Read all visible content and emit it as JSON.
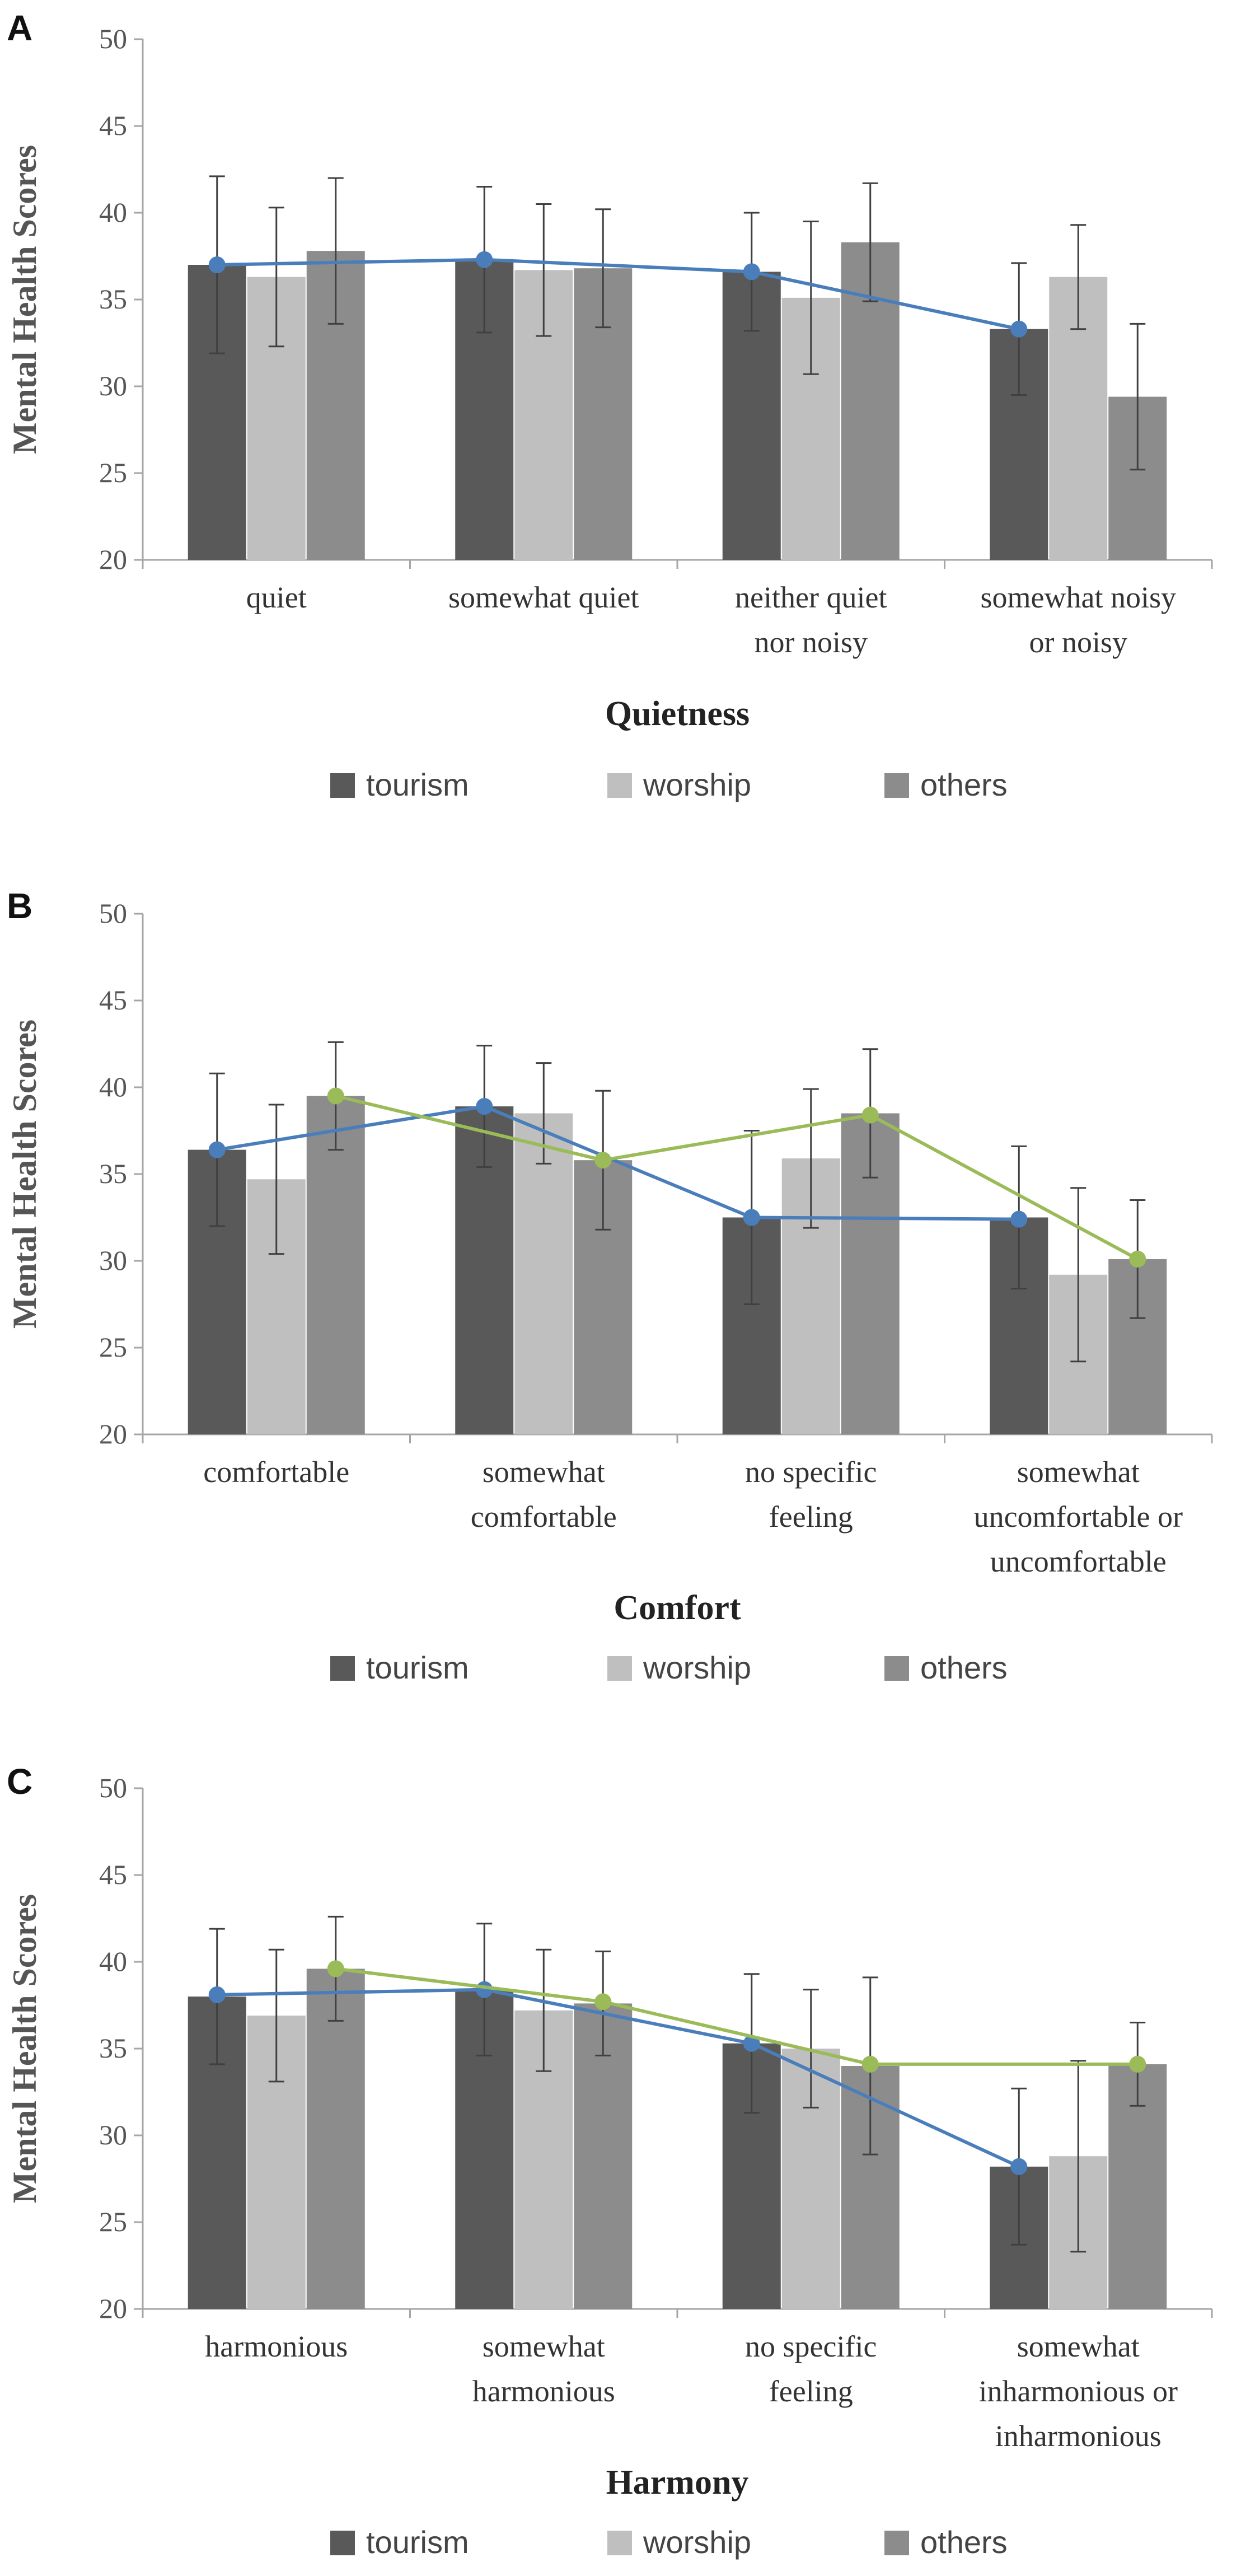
{
  "colors": {
    "tourism": "#595959",
    "worship": "#bfbfbf",
    "others": "#8c8c8c",
    "blue_line": "#4a7ebb",
    "green_line": "#9bbb59",
    "axis": "#a6a6a6",
    "error_bar": "#404040"
  },
  "chart_data": [
    {
      "panel": "A",
      "type": "bar",
      "xlabel": "Quietness",
      "ylabel": "Mental Health Scores",
      "ylim": [
        20,
        50
      ],
      "yticks": [
        "20",
        "25",
        "30",
        "35",
        "40",
        "45",
        "50"
      ],
      "categories": [
        [
          "quiet"
        ],
        [
          "somewhat quiet"
        ],
        [
          "neither quiet",
          "nor noisy"
        ],
        [
          "somewhat noisy",
          "or noisy"
        ]
      ],
      "series": [
        {
          "name": "tourism",
          "values": [
            37.0,
            37.3,
            36.6,
            33.3
          ],
          "err": [
            5.1,
            4.2,
            3.4,
            3.8
          ]
        },
        {
          "name": "worship",
          "values": [
            36.3,
            36.7,
            35.1,
            36.3
          ],
          "err": [
            4.0,
            3.8,
            4.4,
            3.0
          ]
        },
        {
          "name": "others",
          "values": [
            37.8,
            36.8,
            38.3,
            29.4
          ],
          "err": [
            4.2,
            3.4,
            3.4,
            4.2
          ]
        }
      ],
      "lines": [
        {
          "name": "blue",
          "color_key": "blue_line",
          "values": [
            37.0,
            37.3,
            36.6,
            33.3
          ]
        }
      ],
      "legend": [
        "tourism",
        "worship",
        "others"
      ]
    },
    {
      "panel": "B",
      "type": "bar",
      "xlabel": "Comfort",
      "ylabel": "Mental Health Scores",
      "ylim": [
        20,
        50
      ],
      "yticks": [
        "20",
        "25",
        "30",
        "35",
        "40",
        "45",
        "50"
      ],
      "categories": [
        [
          "comfortable"
        ],
        [
          "somewhat",
          "comfortable"
        ],
        [
          "no specific",
          "feeling"
        ],
        [
          "somewhat",
          "uncomfortable or",
          "uncomfortable"
        ]
      ],
      "series": [
        {
          "name": "tourism",
          "values": [
            36.4,
            38.9,
            32.5,
            32.5
          ],
          "err": [
            4.4,
            3.5,
            5.0,
            4.1
          ]
        },
        {
          "name": "worship",
          "values": [
            34.7,
            38.5,
            35.9,
            29.2
          ],
          "err": [
            4.3,
            2.9,
            4.0,
            5.0
          ]
        },
        {
          "name": "others",
          "values": [
            39.5,
            35.8,
            38.5,
            30.1
          ],
          "err": [
            3.1,
            4.0,
            3.7,
            3.4
          ]
        }
      ],
      "lines": [
        {
          "name": "blue",
          "color_key": "blue_line",
          "values": [
            36.4,
            38.9,
            32.5,
            32.4
          ]
        },
        {
          "name": "green",
          "color_key": "green_line",
          "values": [
            39.5,
            35.8,
            38.4,
            30.1
          ]
        }
      ],
      "legend": [
        "tourism",
        "worship",
        "others"
      ]
    },
    {
      "panel": "C",
      "type": "bar",
      "xlabel": "Harmony",
      "ylabel": "Mental Health Scores",
      "ylim": [
        20,
        50
      ],
      "yticks": [
        "20",
        "25",
        "30",
        "35",
        "40",
        "45",
        "50"
      ],
      "categories": [
        [
          "harmonious"
        ],
        [
          "somewhat",
          "harmonious"
        ],
        [
          "no specific",
          "feeling"
        ],
        [
          "somewhat",
          "inharmonious or",
          "inharmonious"
        ]
      ],
      "series": [
        {
          "name": "tourism",
          "values": [
            38.0,
            38.4,
            35.3,
            28.2
          ],
          "err": [
            3.9,
            3.8,
            4.0,
            4.5
          ]
        },
        {
          "name": "worship",
          "values": [
            36.9,
            37.2,
            35.0,
            28.8
          ],
          "err": [
            3.8,
            3.5,
            3.4,
            5.5
          ]
        },
        {
          "name": "others",
          "values": [
            39.6,
            37.6,
            34.0,
            34.1
          ],
          "err": [
            3.0,
            3.0,
            5.1,
            2.4
          ]
        }
      ],
      "lines": [
        {
          "name": "blue",
          "color_key": "blue_line",
          "values": [
            38.1,
            38.4,
            35.3,
            28.2
          ]
        },
        {
          "name": "green",
          "color_key": "green_line",
          "values": [
            39.6,
            37.7,
            34.1,
            34.1
          ]
        }
      ],
      "legend": [
        "tourism",
        "worship",
        "others"
      ]
    }
  ]
}
